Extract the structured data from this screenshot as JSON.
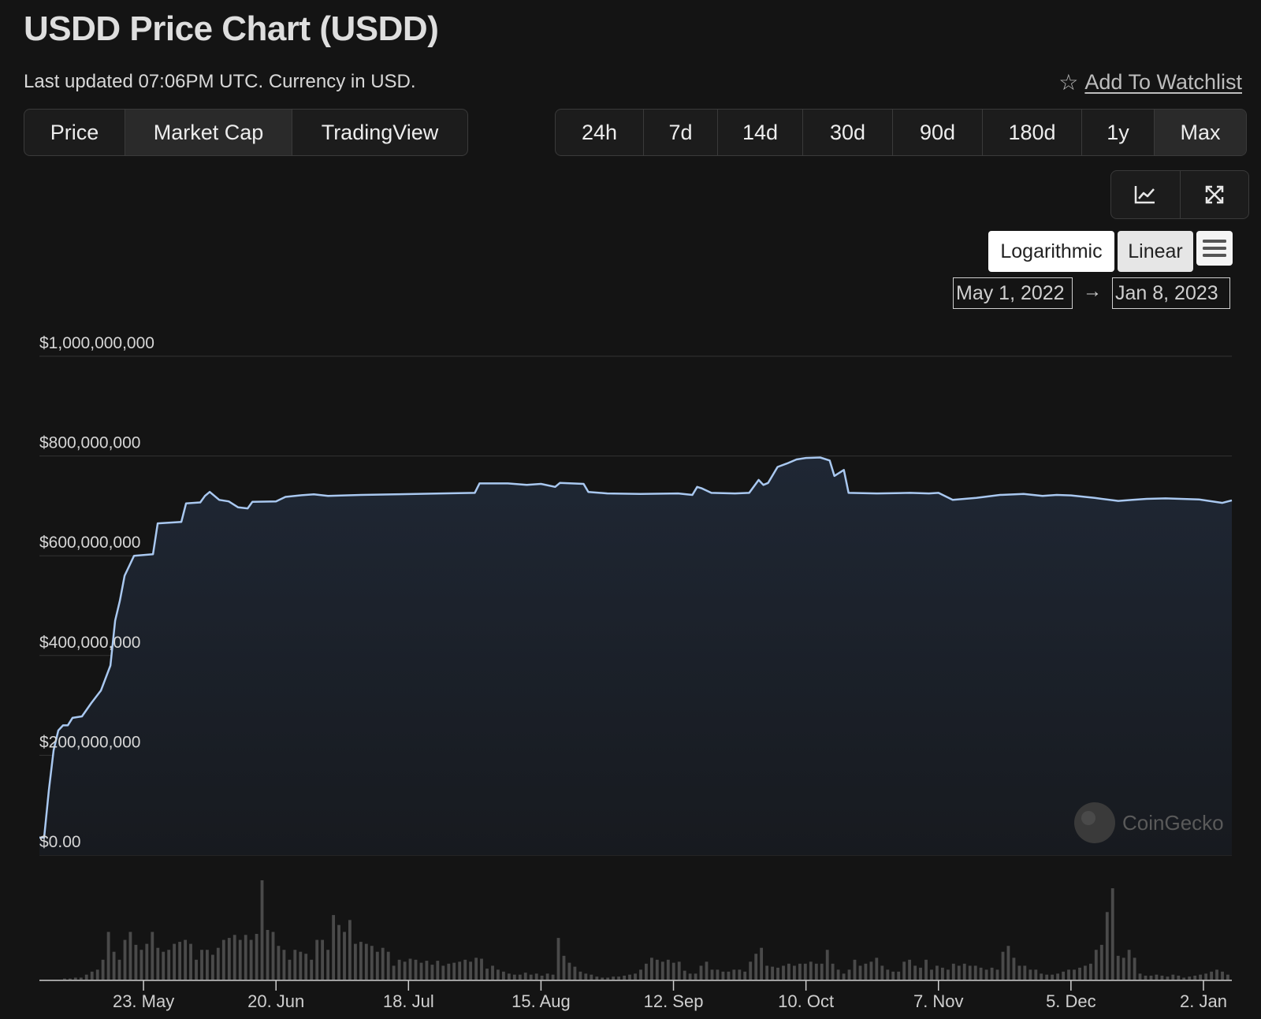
{
  "header": {
    "title": "USDD Price Chart (USDD)",
    "updated": "Last updated 07:06PM UTC. Currency in USD.",
    "watchlist": "Add To Watchlist"
  },
  "tabs": [
    "Price",
    "Market Cap",
    "TradingView"
  ],
  "active_tab": "Market Cap",
  "ranges": [
    "24h",
    "7d",
    "14d",
    "30d",
    "90d",
    "180d",
    "1y",
    "Max"
  ],
  "active_range": "Max",
  "scale": {
    "log": "Logarithmic",
    "linear": "Linear",
    "active": "Linear"
  },
  "date_range": {
    "from": "May 1, 2022",
    "arrow": "→",
    "to": "Jan 8, 2023"
  },
  "watermark": "CoinGecko",
  "colors": {
    "line": "#a9c8f0",
    "volume": "#4a4a4a",
    "grid": "#333333",
    "background": "#141414"
  },
  "chart_data": {
    "type": "area",
    "title": "USDD Price Chart (USDD)",
    "metric": "Market Cap",
    "ylabel": "",
    "ylim": [
      0,
      1000000000
    ],
    "y_ticks": [
      "$0.00",
      "$200,000,000",
      "$400,000,000",
      "$600,000,000",
      "$800,000,000",
      "$1,000,000,000"
    ],
    "y_tick_values": [
      0,
      200000000,
      400000000,
      600000000,
      800000000,
      1000000000
    ],
    "x_range": [
      "2022-05-01",
      "2023-01-08"
    ],
    "x_ticks": [
      "23. May",
      "20. Jun",
      "18. Jul",
      "15. Aug",
      "12. Sep",
      "10. Oct",
      "7. Nov",
      "5. Dec",
      "2. Jan"
    ],
    "x_tick_dates": [
      "2022-05-23",
      "2022-06-20",
      "2022-07-18",
      "2022-08-15",
      "2022-09-12",
      "2022-10-10",
      "2022-11-07",
      "2022-12-05",
      "2023-01-02"
    ],
    "series": [
      {
        "values_unit": "USD",
        "points": [
          [
            "2022-05-01",
            35000000
          ],
          [
            "2022-05-02",
            35000000
          ],
          [
            "2022-05-03",
            130000000
          ],
          [
            "2022-05-04",
            210000000
          ],
          [
            "2022-05-05",
            250000000
          ],
          [
            "2022-05-06",
            260000000
          ],
          [
            "2022-05-07",
            260000000
          ],
          [
            "2022-05-08",
            275000000
          ],
          [
            "2022-05-10",
            278000000
          ],
          [
            "2022-05-12",
            305000000
          ],
          [
            "2022-05-14",
            330000000
          ],
          [
            "2022-05-16",
            380000000
          ],
          [
            "2022-05-17",
            470000000
          ],
          [
            "2022-05-18",
            510000000
          ],
          [
            "2022-05-19",
            560000000
          ],
          [
            "2022-05-20",
            580000000
          ],
          [
            "2022-05-21",
            600000000
          ],
          [
            "2022-05-25",
            603000000
          ],
          [
            "2022-05-26",
            665000000
          ],
          [
            "2022-05-31",
            668000000
          ],
          [
            "2022-06-01",
            705000000
          ],
          [
            "2022-06-04",
            707000000
          ],
          [
            "2022-06-05",
            720000000
          ],
          [
            "2022-06-06",
            728000000
          ],
          [
            "2022-06-08",
            712000000
          ],
          [
            "2022-06-10",
            709000000
          ],
          [
            "2022-06-12",
            697000000
          ],
          [
            "2022-06-14",
            695000000
          ],
          [
            "2022-06-15",
            708000000
          ],
          [
            "2022-06-20",
            709000000
          ],
          [
            "2022-06-22",
            718000000
          ],
          [
            "2022-06-25",
            721000000
          ],
          [
            "2022-06-28",
            723000000
          ],
          [
            "2022-07-01",
            720000000
          ],
          [
            "2022-07-08",
            722000000
          ],
          [
            "2022-07-15",
            723000000
          ],
          [
            "2022-07-25",
            725000000
          ],
          [
            "2022-08-01",
            726000000
          ],
          [
            "2022-08-02",
            745000000
          ],
          [
            "2022-08-08",
            745000000
          ],
          [
            "2022-08-12",
            742000000
          ],
          [
            "2022-08-15",
            744000000
          ],
          [
            "2022-08-18",
            738000000
          ],
          [
            "2022-08-19",
            746000000
          ],
          [
            "2022-08-24",
            744000000
          ],
          [
            "2022-08-25",
            728000000
          ],
          [
            "2022-08-29",
            725000000
          ],
          [
            "2022-09-05",
            724000000
          ],
          [
            "2022-09-13",
            725000000
          ],
          [
            "2022-09-16",
            722000000
          ],
          [
            "2022-09-17",
            738000000
          ],
          [
            "2022-09-18",
            735000000
          ],
          [
            "2022-09-20",
            726000000
          ],
          [
            "2022-09-25",
            725000000
          ],
          [
            "2022-09-28",
            726000000
          ],
          [
            "2022-09-30",
            752000000
          ],
          [
            "2022-10-01",
            742000000
          ],
          [
            "2022-10-02",
            746000000
          ],
          [
            "2022-10-04",
            778000000
          ],
          [
            "2022-10-06",
            785000000
          ],
          [
            "2022-10-08",
            793000000
          ],
          [
            "2022-10-10",
            796000000
          ],
          [
            "2022-10-13",
            797000000
          ],
          [
            "2022-10-15",
            791000000
          ],
          [
            "2022-10-16",
            760000000
          ],
          [
            "2022-10-18",
            772000000
          ],
          [
            "2022-10-19",
            726000000
          ],
          [
            "2022-10-25",
            725000000
          ],
          [
            "2022-11-01",
            726000000
          ],
          [
            "2022-11-05",
            725000000
          ],
          [
            "2022-11-07",
            726000000
          ],
          [
            "2022-11-10",
            712000000
          ],
          [
            "2022-11-15",
            716000000
          ],
          [
            "2022-11-20",
            722000000
          ],
          [
            "2022-11-25",
            724000000
          ],
          [
            "2022-11-29",
            720000000
          ],
          [
            "2022-12-02",
            722000000
          ],
          [
            "2022-12-05",
            721000000
          ],
          [
            "2022-12-10",
            716000000
          ],
          [
            "2022-12-15",
            710000000
          ],
          [
            "2022-12-18",
            712000000
          ],
          [
            "2022-12-21",
            714000000
          ],
          [
            "2022-12-25",
            715000000
          ],
          [
            "2023-01-01",
            713000000
          ],
          [
            "2023-01-06",
            706000000
          ],
          [
            "2023-01-08",
            711000000
          ]
        ]
      }
    ],
    "volume_relative": [
      0.01,
      0.01,
      0.02,
      0.02,
      0.05,
      0.08,
      0.1,
      0.2,
      0.48,
      0.28,
      0.2,
      0.4,
      0.48,
      0.35,
      0.3,
      0.36,
      0.48,
      0.32,
      0.28,
      0.3,
      0.36,
      0.38,
      0.4,
      0.36,
      0.2,
      0.3,
      0.3,
      0.25,
      0.32,
      0.4,
      0.42,
      0.45,
      0.4,
      0.45,
      0.4,
      0.46,
      1.0,
      0.5,
      0.48,
      0.34,
      0.3,
      0.2,
      0.3,
      0.28,
      0.26,
      0.2,
      0.4,
      0.4,
      0.3,
      0.65,
      0.55,
      0.48,
      0.6,
      0.36,
      0.38,
      0.36,
      0.34,
      0.28,
      0.32,
      0.28,
      0.14,
      0.2,
      0.18,
      0.21,
      0.2,
      0.17,
      0.19,
      0.15,
      0.19,
      0.14,
      0.16,
      0.17,
      0.18,
      0.2,
      0.18,
      0.22,
      0.21,
      0.11,
      0.14,
      0.1,
      0.08,
      0.06,
      0.05,
      0.05,
      0.07,
      0.05,
      0.06,
      0.04,
      0.06,
      0.05,
      0.42,
      0.24,
      0.17,
      0.13,
      0.08,
      0.06,
      0.05,
      0.03,
      0.02,
      0.02,
      0.03,
      0.03,
      0.04,
      0.05,
      0.06,
      0.1,
      0.16,
      0.22,
      0.2,
      0.18,
      0.2,
      0.17,
      0.18,
      0.09,
      0.06,
      0.06,
      0.14,
      0.18,
      0.1,
      0.1,
      0.08,
      0.08,
      0.1,
      0.1,
      0.08,
      0.18,
      0.26,
      0.32,
      0.14,
      0.13,
      0.12,
      0.14,
      0.16,
      0.14,
      0.16,
      0.16,
      0.18,
      0.16,
      0.16,
      0.3,
      0.16,
      0.1,
      0.06,
      0.1,
      0.2,
      0.14,
      0.16,
      0.18,
      0.22,
      0.14,
      0.1,
      0.08,
      0.08,
      0.18,
      0.2,
      0.14,
      0.12,
      0.2,
      0.1,
      0.14,
      0.12,
      0.1,
      0.16,
      0.14,
      0.16,
      0.14,
      0.14,
      0.12,
      0.1,
      0.12,
      0.1,
      0.28,
      0.34,
      0.22,
      0.14,
      0.14,
      0.1,
      0.1,
      0.06,
      0.05,
      0.05,
      0.06,
      0.08,
      0.1,
      0.1,
      0.12,
      0.14,
      0.16,
      0.3,
      0.35,
      0.68,
      0.92,
      0.24,
      0.22,
      0.3,
      0.22,
      0.06,
      0.04,
      0.04,
      0.05,
      0.04,
      0.03,
      0.05,
      0.04,
      0.02,
      0.03,
      0.04,
      0.05,
      0.06,
      0.08,
      0.1,
      0.08,
      0.05
    ]
  }
}
